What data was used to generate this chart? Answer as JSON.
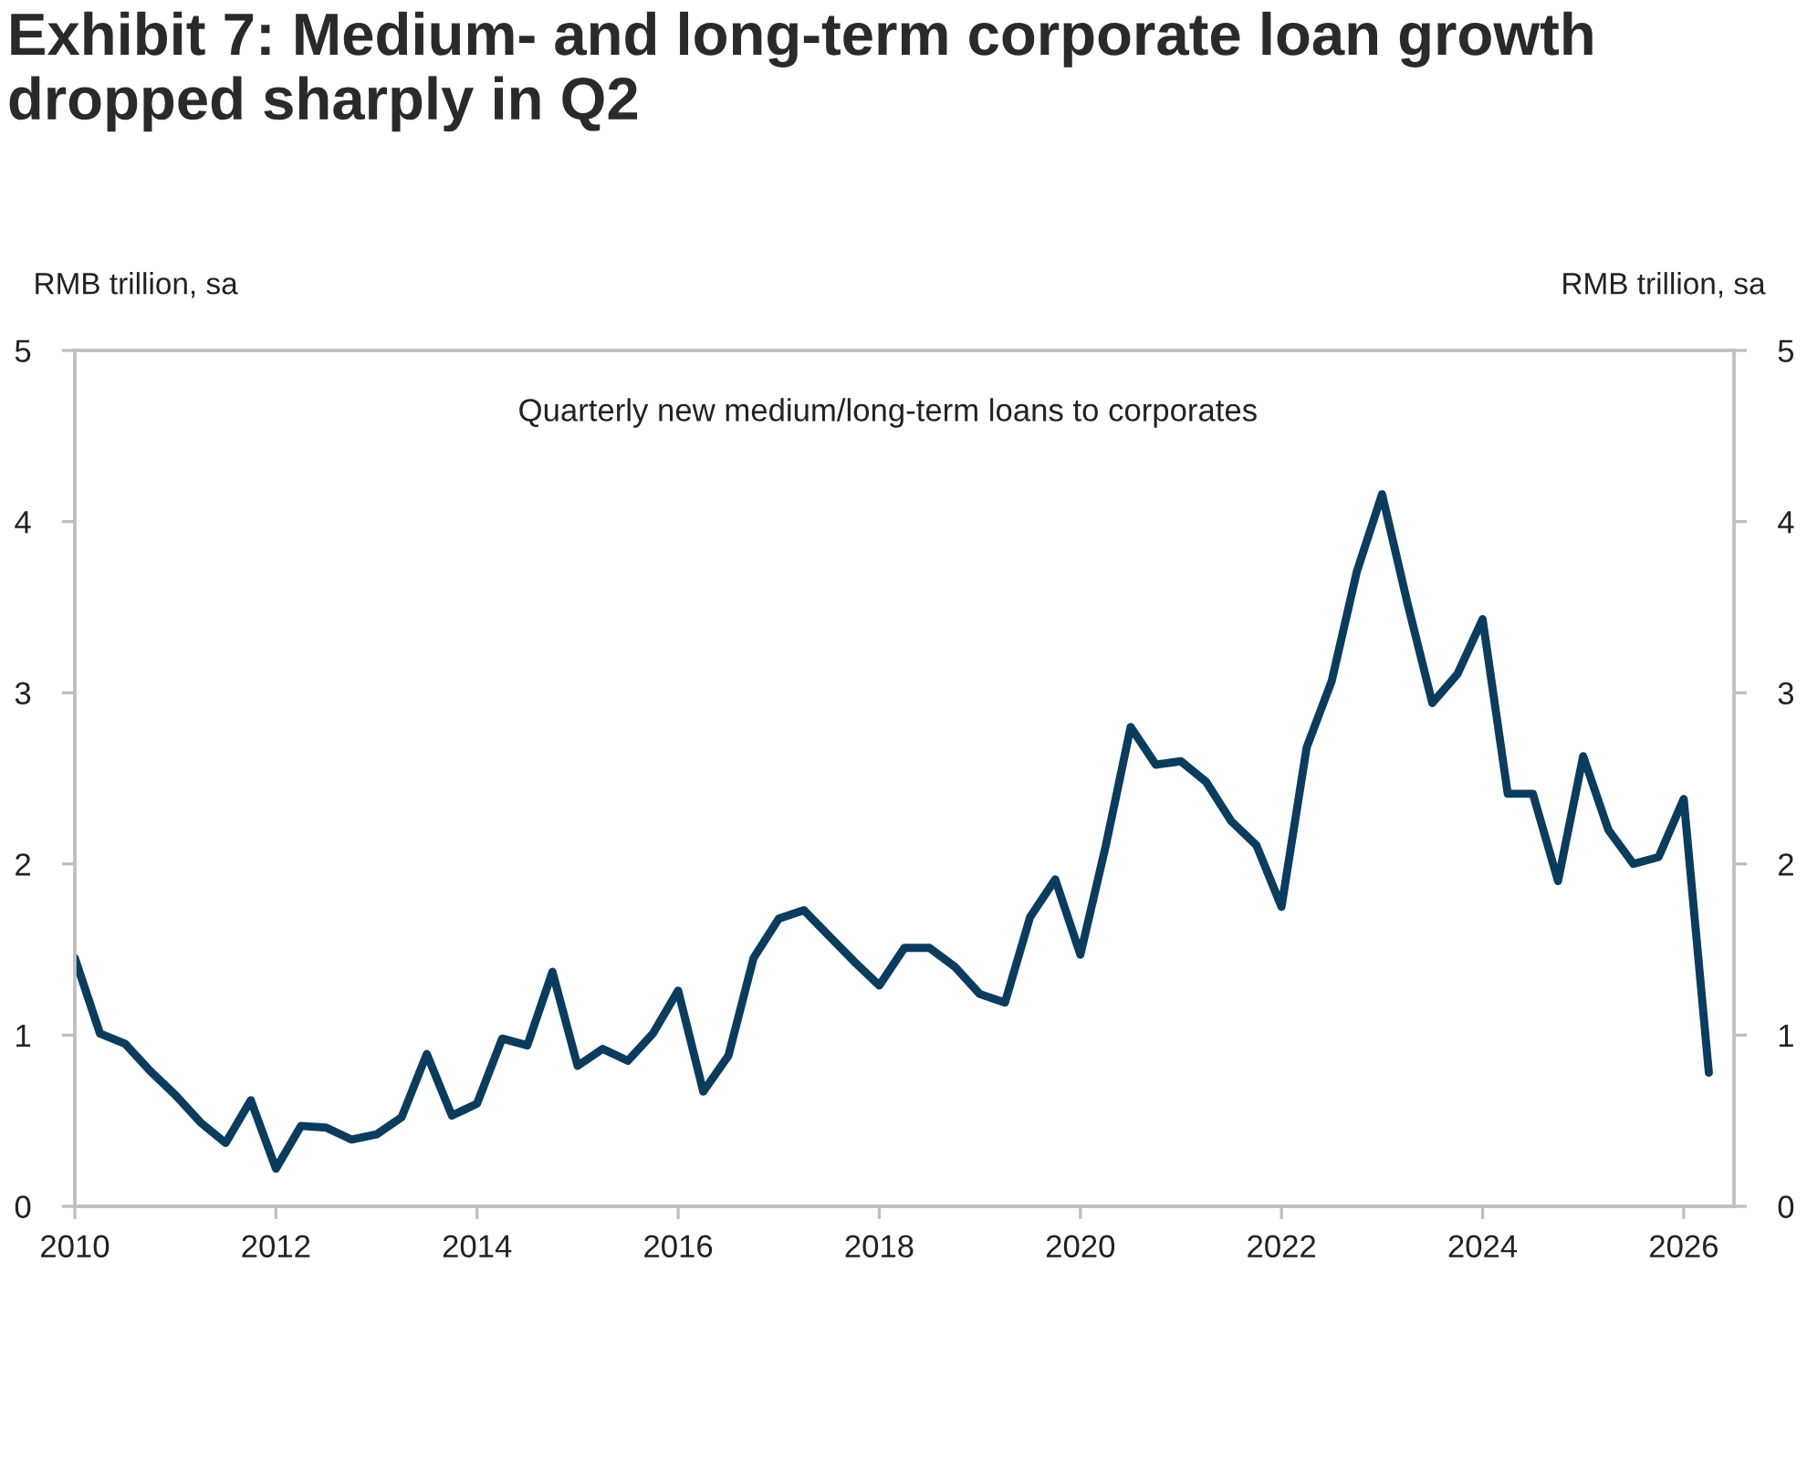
{
  "chart_data": {
    "type": "line",
    "title": "Exhibit 7: Medium- and long-term corporate loan growth dropped sharply in Q2",
    "ylabel": "RMB trillion, sa",
    "y2label": "RMB trillion, sa",
    "annotations": [
      "Quarterly new medium/long-term loans to corporates"
    ],
    "x": [
      2010,
      2010.25,
      2010.5,
      2010.75,
      2011,
      2011.25,
      2011.5,
      2011.75,
      2012,
      2012.25,
      2012.5,
      2012.75,
      2013,
      2013.25,
      2013.5,
      2013.75,
      2014,
      2014.25,
      2014.5,
      2014.75,
      2015,
      2015.25,
      2015.5,
      2015.75,
      2016,
      2016.25,
      2016.5,
      2016.75,
      2017,
      2017.25,
      2017.5,
      2017.75,
      2018,
      2018.25,
      2018.5,
      2018.75,
      2019,
      2019.25,
      2019.5,
      2019.75,
      2020,
      2020.25,
      2020.5,
      2020.75,
      2021,
      2021.25,
      2021.5,
      2021.75,
      2022,
      2022.25,
      2022.5,
      2022.75,
      2023,
      2023.25,
      2023.5,
      2023.75,
      2024,
      2024.25,
      2024.5,
      2024.75,
      2025,
      2025.25,
      2025.5,
      2025.75,
      2026,
      2026.25
    ],
    "series": [
      {
        "color": "#0b3c5d",
        "values": [
          1.45,
          1.01,
          0.95,
          0.79,
          0.65,
          0.49,
          0.37,
          0.62,
          0.22,
          0.47,
          0.46,
          0.39,
          0.42,
          0.52,
          0.89,
          0.53,
          0.6,
          0.98,
          0.94,
          1.37,
          0.82,
          0.92,
          0.85,
          1.01,
          1.26,
          0.67,
          0.88,
          1.45,
          1.68,
          1.73,
          1.58,
          1.43,
          1.29,
          1.51,
          1.51,
          1.4,
          1.24,
          1.19,
          1.69,
          1.91,
          1.47,
          2.1,
          2.8,
          2.58,
          2.6,
          2.48,
          2.25,
          2.11,
          1.75,
          2.68,
          3.07,
          3.71,
          4.16,
          3.53,
          2.94,
          3.11,
          3.43,
          2.41,
          2.41,
          1.9,
          2.63,
          2.2,
          2.0,
          2.04,
          2.38,
          0.78
        ]
      }
    ],
    "xlim": [
      2010,
      2026.5
    ],
    "xticks": [
      2010,
      2012,
      2014,
      2016,
      2018,
      2020,
      2022,
      2024,
      2026
    ],
    "ylim": [
      0,
      5
    ],
    "yticks": [
      0,
      1,
      2,
      3,
      4,
      5
    ],
    "y2lim": [
      0,
      5
    ],
    "y2ticks": [
      0,
      1,
      2,
      3,
      4,
      5
    ]
  }
}
